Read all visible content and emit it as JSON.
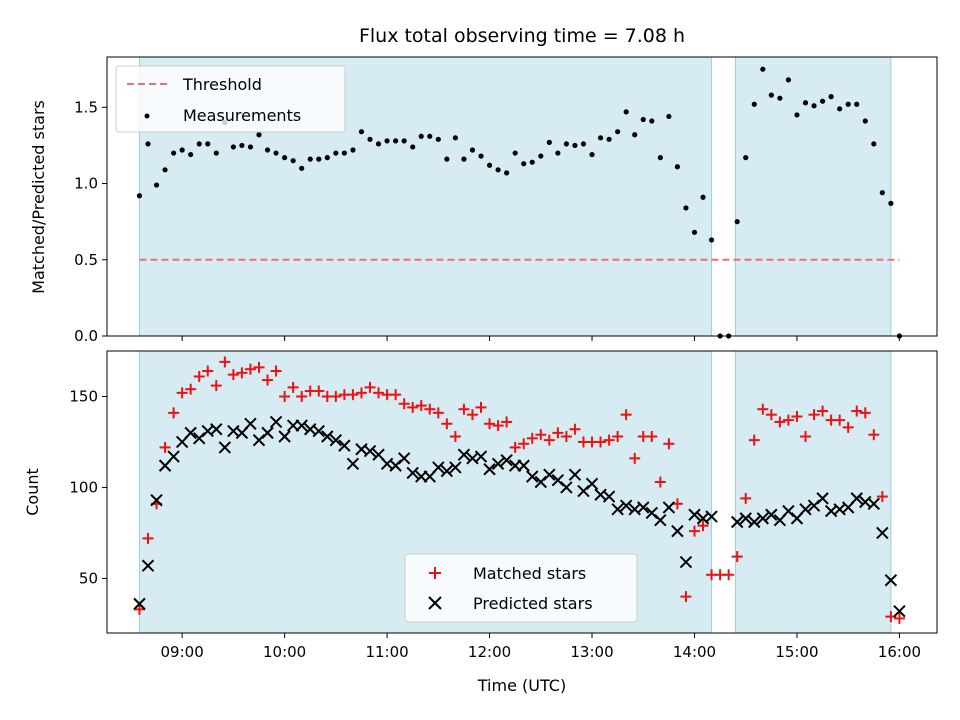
{
  "chart_data": [
    {
      "type": "scatter",
      "title": "Flux total observing time = 7.08 h",
      "xlabel": "",
      "ylabel": "Matched/Predicted stars",
      "xlim": [
        "08:16",
        "16:22"
      ],
      "ylim": [
        0,
        1.83
      ],
      "yticks": [
        0.0,
        0.5,
        1.0,
        1.5
      ],
      "ytick_labels": [
        "0.0",
        "0.5",
        "1.0",
        "1.5"
      ],
      "legend": {
        "placement": "top-left",
        "entries": [
          "Threshold",
          "Measurements"
        ]
      },
      "threshold": {
        "name": "Threshold",
        "value": 0.5,
        "color": "#f07070",
        "xrange": [
          "08:35",
          "16:00"
        ]
      },
      "observing_windows": [
        [
          "08:35",
          "14:10"
        ],
        [
          "14:24",
          "15:55"
        ]
      ],
      "series": [
        {
          "name": "Measurements",
          "color": "#000000",
          "x": [
            "08:35",
            "08:40",
            "08:45",
            "08:50",
            "08:55",
            "09:00",
            "09:05",
            "09:10",
            "09:15",
            "09:20",
            "09:25",
            "09:30",
            "09:35",
            "09:40",
            "09:45",
            "09:50",
            "09:55",
            "10:00",
            "10:05",
            "10:10",
            "10:15",
            "10:20",
            "10:25",
            "10:30",
            "10:35",
            "10:40",
            "10:45",
            "10:50",
            "10:55",
            "11:00",
            "11:05",
            "11:10",
            "11:15",
            "11:20",
            "11:25",
            "11:30",
            "11:35",
            "11:40",
            "11:45",
            "11:50",
            "11:55",
            "12:00",
            "12:05",
            "12:10",
            "12:15",
            "12:20",
            "12:25",
            "12:30",
            "12:35",
            "12:40",
            "12:45",
            "12:50",
            "12:55",
            "13:00",
            "13:05",
            "13:10",
            "13:15",
            "13:20",
            "13:25",
            "13:30",
            "13:35",
            "13:40",
            "13:45",
            "13:50",
            "13:55",
            "14:00",
            "14:05",
            "14:10",
            "14:15",
            "14:20",
            "14:25",
            "14:30",
            "14:35",
            "14:40",
            "14:45",
            "14:50",
            "14:55",
            "15:00",
            "15:05",
            "15:10",
            "15:15",
            "15:20",
            "15:25",
            "15:30",
            "15:35",
            "15:40",
            "15:45",
            "15:50",
            "15:55",
            "16:00"
          ],
          "y": [
            0.92,
            1.26,
            0.99,
            1.09,
            1.2,
            1.22,
            1.19,
            1.26,
            1.26,
            1.2,
            1.4,
            1.24,
            1.25,
            1.24,
            1.32,
            1.22,
            1.2,
            1.17,
            1.15,
            1.1,
            1.16,
            1.16,
            1.17,
            1.2,
            1.2,
            1.22,
            1.34,
            1.29,
            1.26,
            1.28,
            1.28,
            1.28,
            1.24,
            1.31,
            1.31,
            1.29,
            1.16,
            1.3,
            1.16,
            1.22,
            1.18,
            1.12,
            1.09,
            1.07,
            1.2,
            1.13,
            1.14,
            1.18,
            1.27,
            1.2,
            1.26,
            1.25,
            1.26,
            1.19,
            1.3,
            1.29,
            1.34,
            1.47,
            1.32,
            1.42,
            1.41,
            1.17,
            1.44,
            1.11,
            0.84,
            0.68,
            0.91,
            0.63,
            0.0,
            0.0,
            0.75,
            1.17,
            1.52,
            1.75,
            1.58,
            1.56,
            1.68,
            1.45,
            1.53,
            1.51,
            1.54,
            1.57,
            1.49,
            1.52,
            1.52,
            1.41,
            1.26,
            0.94,
            0.87,
            0.0
          ]
        }
      ]
    },
    {
      "type": "scatter",
      "title": "",
      "xlabel": "Time (UTC)",
      "ylabel": "Count",
      "xlim": [
        "08:16",
        "16:22"
      ],
      "ylim": [
        20,
        175
      ],
      "yticks": [
        50,
        100,
        150
      ],
      "ytick_labels": [
        "50",
        "100",
        "150"
      ],
      "xticks": [
        "09:00",
        "10:00",
        "11:00",
        "12:00",
        "13:00",
        "14:00",
        "15:00",
        "16:00"
      ],
      "legend": {
        "placement": "bottom-center",
        "entries": [
          "Matched stars",
          "Predicted stars"
        ]
      },
      "observing_windows": [
        [
          "08:35",
          "14:10"
        ],
        [
          "14:24",
          "15:55"
        ]
      ],
      "series": [
        {
          "name": "Matched stars",
          "color": "#ee1111",
          "marker": "plus",
          "x": [
            "08:35",
            "08:40",
            "08:45",
            "08:50",
            "08:55",
            "09:00",
            "09:05",
            "09:10",
            "09:15",
            "09:20",
            "09:25",
            "09:30",
            "09:35",
            "09:40",
            "09:45",
            "09:50",
            "09:55",
            "10:00",
            "10:05",
            "10:10",
            "10:15",
            "10:20",
            "10:25",
            "10:30",
            "10:35",
            "10:40",
            "10:45",
            "10:50",
            "10:55",
            "11:00",
            "11:05",
            "11:10",
            "11:15",
            "11:20",
            "11:25",
            "11:30",
            "11:35",
            "11:40",
            "11:45",
            "11:50",
            "11:55",
            "12:00",
            "12:05",
            "12:10",
            "12:15",
            "12:20",
            "12:25",
            "12:30",
            "12:35",
            "12:40",
            "12:45",
            "12:50",
            "12:55",
            "13:00",
            "13:05",
            "13:10",
            "13:15",
            "13:20",
            "13:25",
            "13:30",
            "13:35",
            "13:40",
            "13:45",
            "13:50",
            "13:55",
            "14:00",
            "14:05",
            "14:10",
            "14:15",
            "14:20",
            "14:25",
            "14:30",
            "14:35",
            "14:40",
            "14:45",
            "14:50",
            "14:55",
            "15:00",
            "15:05",
            "15:10",
            "15:15",
            "15:20",
            "15:25",
            "15:30",
            "15:35",
            "15:40",
            "15:45",
            "15:50",
            "15:55",
            "16:00"
          ],
          "y": [
            33,
            72,
            91,
            122,
            141,
            152,
            154,
            161,
            164,
            156,
            169,
            162,
            163,
            165,
            166,
            159,
            164,
            150,
            155,
            150,
            153,
            153,
            150,
            150,
            151,
            151,
            152,
            155,
            152,
            151,
            151,
            146,
            144,
            145,
            143,
            141,
            135,
            128,
            143,
            140,
            144,
            135,
            134,
            136,
            122,
            124,
            127,
            129,
            126,
            130,
            128,
            132,
            125,
            125,
            125,
            126,
            128,
            140,
            116,
            128,
            128,
            103,
            124,
            91,
            40,
            76,
            79,
            52,
            52,
            52,
            62,
            94,
            126,
            143,
            140,
            136,
            137,
            139,
            128,
            140,
            142,
            137,
            137,
            133,
            142,
            141,
            129,
            95,
            29,
            28
          ]
        },
        {
          "name": "Predicted stars",
          "color": "#000000",
          "marker": "x",
          "x": [
            "08:35",
            "08:40",
            "08:45",
            "08:50",
            "08:55",
            "09:00",
            "09:05",
            "09:10",
            "09:15",
            "09:20",
            "09:25",
            "09:30",
            "09:35",
            "09:40",
            "09:45",
            "09:50",
            "09:55",
            "10:00",
            "10:05",
            "10:10",
            "10:15",
            "10:20",
            "10:25",
            "10:30",
            "10:35",
            "10:40",
            "10:45",
            "10:50",
            "10:55",
            "11:00",
            "11:05",
            "11:10",
            "11:15",
            "11:20",
            "11:25",
            "11:30",
            "11:35",
            "11:40",
            "11:45",
            "11:50",
            "11:55",
            "12:00",
            "12:05",
            "12:10",
            "12:15",
            "12:20",
            "12:25",
            "12:30",
            "12:35",
            "12:40",
            "12:45",
            "12:50",
            "12:55",
            "13:00",
            "13:05",
            "13:10",
            "13:15",
            "13:20",
            "13:25",
            "13:30",
            "13:35",
            "13:40",
            "13:45",
            "13:50",
            "13:55",
            "14:00",
            "14:05",
            "14:10",
            "14:25",
            "14:30",
            "14:35",
            "14:40",
            "14:45",
            "14:50",
            "14:55",
            "15:00",
            "15:05",
            "15:10",
            "15:15",
            "15:20",
            "15:25",
            "15:30",
            "15:35",
            "15:40",
            "15:45",
            "15:50",
            "15:55",
            "16:00"
          ],
          "y": [
            36,
            57,
            93,
            112,
            117,
            125,
            130,
            127,
            131,
            132,
            122,
            131,
            130,
            135,
            126,
            130,
            136,
            128,
            134,
            134,
            132,
            131,
            128,
            126,
            123,
            113,
            121,
            120,
            118,
            113,
            112,
            116,
            108,
            106,
            106,
            111,
            109,
            111,
            118,
            116,
            117,
            110,
            113,
            115,
            112,
            112,
            106,
            103,
            107,
            104,
            100,
            107,
            98,
            102,
            96,
            95,
            88,
            90,
            88,
            89,
            86,
            82,
            89,
            76,
            59,
            85,
            83,
            84,
            81,
            83,
            81,
            83,
            85,
            82,
            87,
            83,
            88,
            90,
            94,
            87,
            88,
            89,
            94,
            92,
            91,
            75,
            49,
            32
          ]
        }
      ]
    }
  ]
}
